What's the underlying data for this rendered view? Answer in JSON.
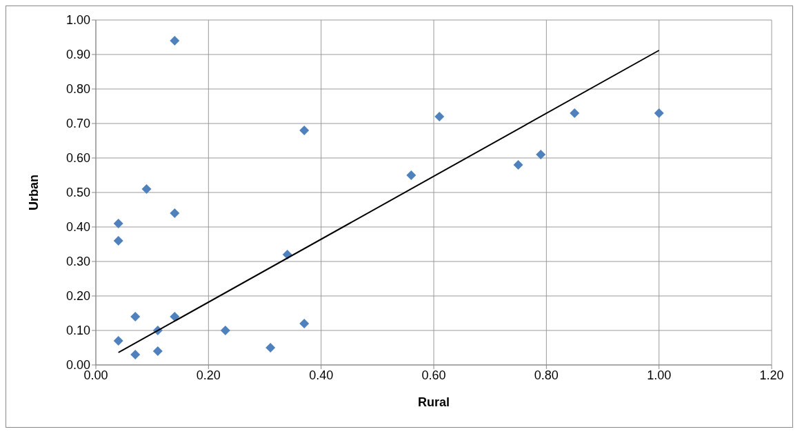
{
  "chart_data": {
    "type": "scatter",
    "xlabel": "Rural",
    "ylabel": "Urban",
    "xlim": [
      0,
      1.2
    ],
    "xticks": [
      {
        "value": 0,
        "label": "0.00"
      },
      {
        "value": 0.2,
        "label": "0.20"
      },
      {
        "value": 0.4,
        "label": "0.40"
      },
      {
        "value": 0.6,
        "label": "0.60"
      },
      {
        "value": 0.8,
        "label": "0.80"
      },
      {
        "value": 1,
        "label": "1.00"
      },
      {
        "value": 1.2,
        "label": "1.20"
      }
    ],
    "ylim": [
      0,
      1
    ],
    "yticks": [
      {
        "value": 0,
        "label": "0.00"
      },
      {
        "value": 0.1,
        "label": "0.10"
      },
      {
        "value": 0.2,
        "label": "0.20"
      },
      {
        "value": 0.3,
        "label": "0.30"
      },
      {
        "value": 0.4,
        "label": "0.40"
      },
      {
        "value": 0.5,
        "label": "0.50"
      },
      {
        "value": 0.6,
        "label": "0.60"
      },
      {
        "value": 0.7,
        "label": "0.70"
      },
      {
        "value": 0.8,
        "label": "0.80"
      },
      {
        "value": 0.9,
        "label": "0.90"
      },
      {
        "value": 1,
        "label": "1.00"
      }
    ],
    "grid": true,
    "series": [
      {
        "type": "scatter",
        "color": "#4f81bd",
        "marker": "diamond",
        "x": [
          0.14,
          0.37,
          0.61,
          0.56,
          1.0,
          0.85,
          0.79,
          0.75,
          0.09,
          0.14,
          0.04,
          0.04,
          0.34,
          0.07,
          0.14,
          0.37,
          0.11,
          0.23,
          0.04,
          0.11,
          0.07,
          0.31
        ],
        "values": [
          0.94,
          0.68,
          0.72,
          0.55,
          0.73,
          0.73,
          0.61,
          0.58,
          0.51,
          0.44,
          0.41,
          0.36,
          0.32,
          0.14,
          0.14,
          0.12,
          0.1,
          0.1,
          0.07,
          0.04,
          0.03,
          0.05
        ]
      },
      {
        "type": "line",
        "color": "#000000",
        "marker": "none",
        "x": [
          0.04,
          1.0
        ],
        "values": [
          0.036,
          0.912
        ]
      }
    ]
  }
}
